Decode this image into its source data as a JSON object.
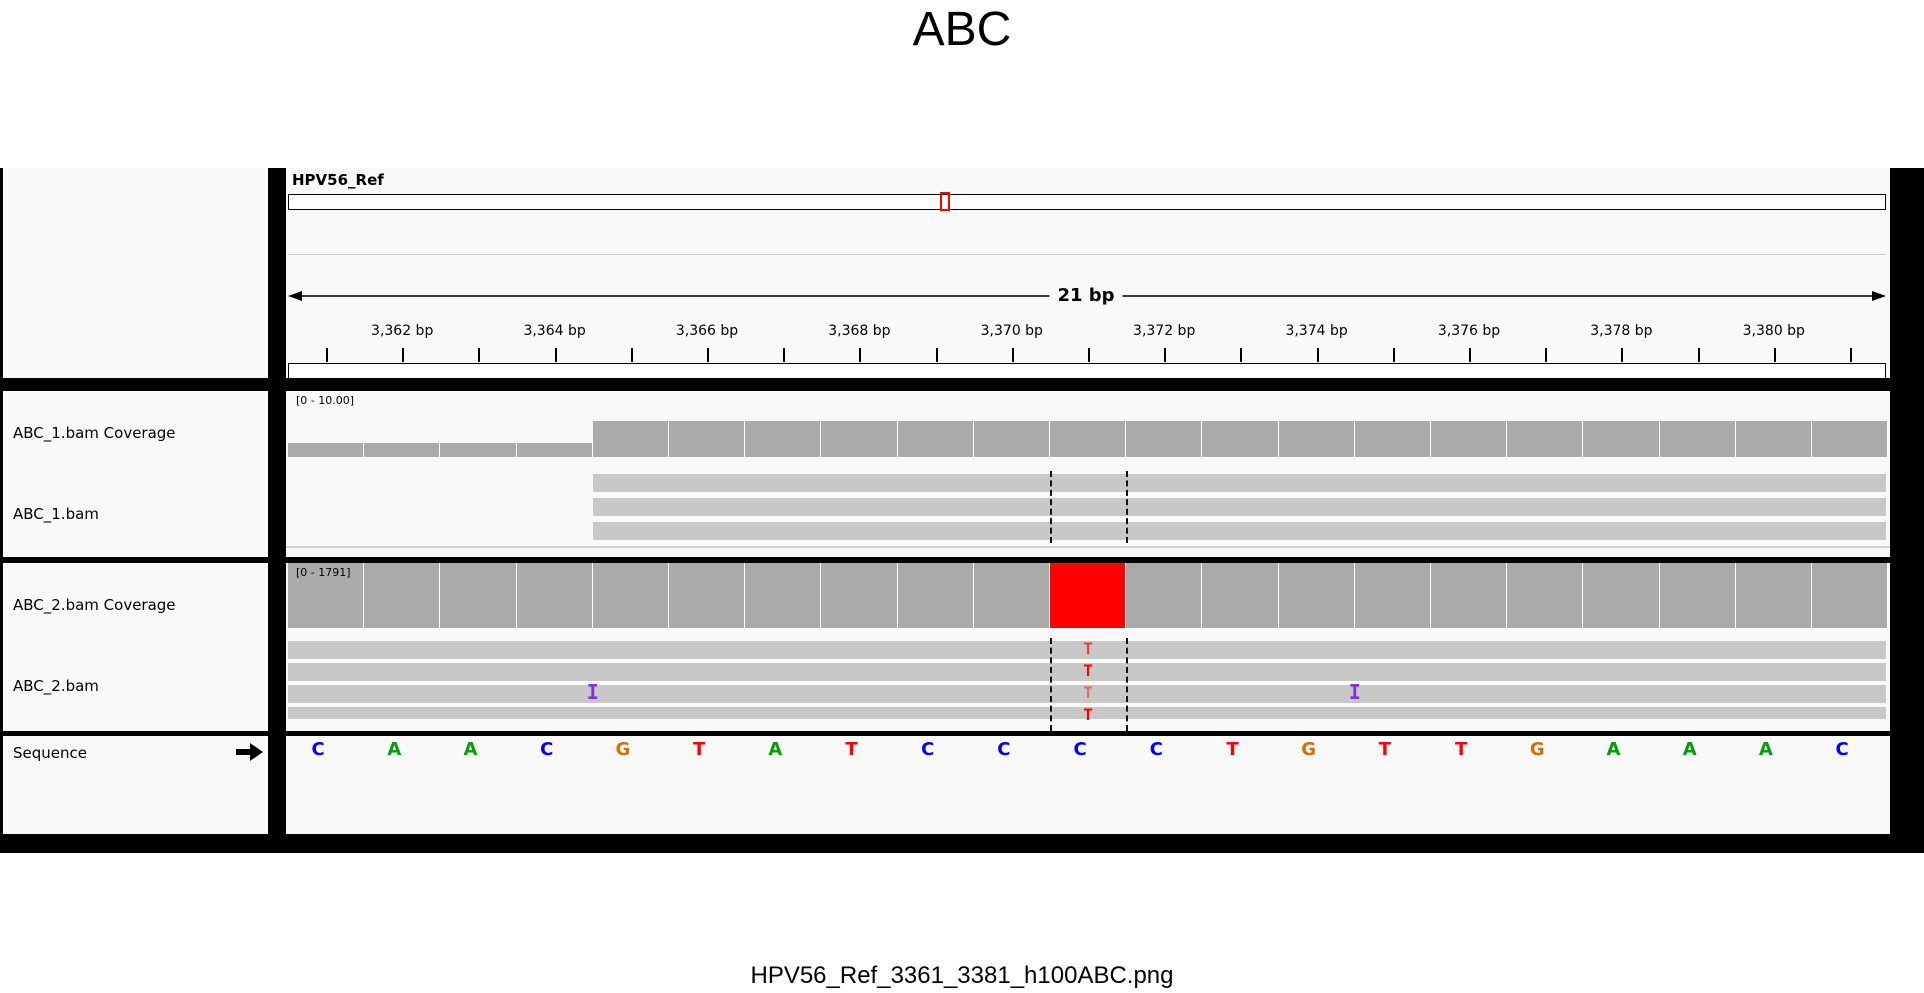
{
  "header": {
    "title": "ABC"
  },
  "footer": {
    "filename": "HPV56_Ref_3361_3381_h100ABC.png"
  },
  "ruler": {
    "chromosome": "HPV56_Ref",
    "span_label": "21 bp",
    "ticks": [
      "3,362 bp",
      "3,364 bp",
      "3,366 bp",
      "3,368 bp",
      "3,370 bp",
      "3,372 bp",
      "3,374 bp",
      "3,376 bp",
      "3,378 bp",
      "3,380 bp"
    ]
  },
  "tracks": {
    "abc1_cov": {
      "label": "ABC_1.bam Coverage",
      "range": "[0 - 10.00]"
    },
    "abc1_bam": {
      "label": "ABC_1.bam"
    },
    "abc2_cov": {
      "label": "ABC_2.bam Coverage",
      "range": "[0 - 1791]"
    },
    "abc2_bam": {
      "label": "ABC_2.bam"
    },
    "sequence": {
      "label": "Sequence",
      "arrow": "arrow-right-icon"
    }
  },
  "sequence_bases": [
    "C",
    "A",
    "A",
    "C",
    "G",
    "T",
    "A",
    "T",
    "C",
    "C",
    "C",
    "C",
    "T",
    "G",
    "T",
    "T",
    "G",
    "A",
    "A",
    "A",
    "C"
  ],
  "mismatch_bases": [
    "T",
    "T",
    "T",
    "T"
  ],
  "insertion_glyph": "I",
  "colors": {
    "A": "#00a000",
    "C": "#0000ff",
    "G": "#d17105",
    "T": "#ff0000",
    "coverage": "#aaaaaa",
    "mismatch_coverage": "#ff0000",
    "read": "#c8c8c8",
    "insertion": "#8a2be2",
    "locus_marker": "#ff0000"
  }
}
